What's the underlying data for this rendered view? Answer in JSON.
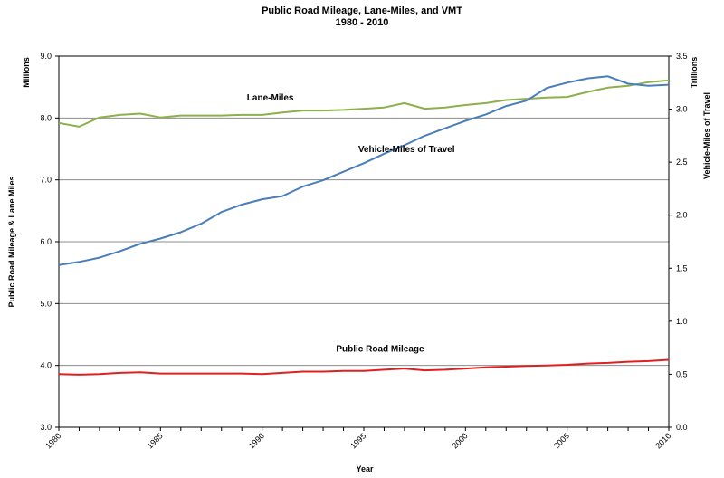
{
  "chart_data": {
    "type": "line",
    "title": "Public Road Mileage, Lane-Miles, and VMT",
    "subtitle": "1980 - 2010",
    "xlabel": "Year",
    "ylabel_left": "Public Road Mileage & Lane Miles",
    "ylabel_left_units": "Millions",
    "ylabel_right": "Vehicle-Miles of Travel",
    "ylabel_right_units": "Trillions",
    "xlim": [
      1980,
      2010
    ],
    "ylim_left": [
      3.0,
      9.0
    ],
    "ylim_right": [
      0.0,
      3.5
    ],
    "x_ticks": [
      "1980",
      "1985",
      "1990",
      "1995",
      "2000",
      "2005",
      "2010"
    ],
    "y_ticks_left": [
      "3.0",
      "4.0",
      "5.0",
      "6.0",
      "7.0",
      "8.0",
      "9.0"
    ],
    "y_ticks_right": [
      "0.0",
      "0.5",
      "1.0",
      "1.5",
      "2.0",
      "2.5",
      "3.0",
      "3.5"
    ],
    "grid": "horizontal",
    "x": [
      1980,
      1981,
      1982,
      1983,
      1984,
      1985,
      1986,
      1987,
      1988,
      1989,
      1990,
      1991,
      1992,
      1993,
      1994,
      1995,
      1996,
      1997,
      1998,
      1999,
      2000,
      2001,
      2002,
      2003,
      2004,
      2005,
      2006,
      2007,
      2008,
      2009,
      2010
    ],
    "series": [
      {
        "name": "Lane-Miles",
        "axis": "left",
        "color": "#8DB04A",
        "values": [
          7.92,
          7.86,
          8.01,
          8.05,
          8.07,
          8.01,
          8.04,
          8.04,
          8.04,
          8.05,
          8.05,
          8.09,
          8.12,
          8.12,
          8.13,
          8.15,
          8.17,
          8.24,
          8.15,
          8.17,
          8.21,
          8.24,
          8.29,
          8.31,
          8.33,
          8.34,
          8.42,
          8.49,
          8.52,
          8.58,
          8.61
        ]
      },
      {
        "name": "Vehicle-Miles of Travel",
        "axis": "right",
        "color": "#4A7EBB",
        "values": [
          1.53,
          1.56,
          1.6,
          1.66,
          1.73,
          1.78,
          1.84,
          1.92,
          2.03,
          2.1,
          2.15,
          2.18,
          2.27,
          2.33,
          2.41,
          2.49,
          2.58,
          2.66,
          2.75,
          2.82,
          2.89,
          2.95,
          3.03,
          3.08,
          3.2,
          3.25,
          3.29,
          3.31,
          3.24,
          3.22,
          3.23
        ]
      },
      {
        "name": "Public Road Mileage",
        "axis": "left",
        "color": "#E02020",
        "values": [
          3.86,
          3.85,
          3.86,
          3.88,
          3.89,
          3.87,
          3.87,
          3.87,
          3.87,
          3.87,
          3.86,
          3.88,
          3.9,
          3.9,
          3.91,
          3.91,
          3.93,
          3.95,
          3.92,
          3.93,
          3.95,
          3.97,
          3.98,
          3.99,
          4.0,
          4.01,
          4.03,
          4.04,
          4.06,
          4.07,
          4.09
        ]
      }
    ],
    "annotations": [
      {
        "text": "Lane-Miles",
        "x": 1990.4,
        "y_left": 8.28
      },
      {
        "text": "Vehicle-Miles of Travel",
        "x": 1997.1,
        "y_left": 7.45
      },
      {
        "text": "Public Road Mileage",
        "x": 1995.8,
        "y_left": 4.22
      }
    ]
  }
}
